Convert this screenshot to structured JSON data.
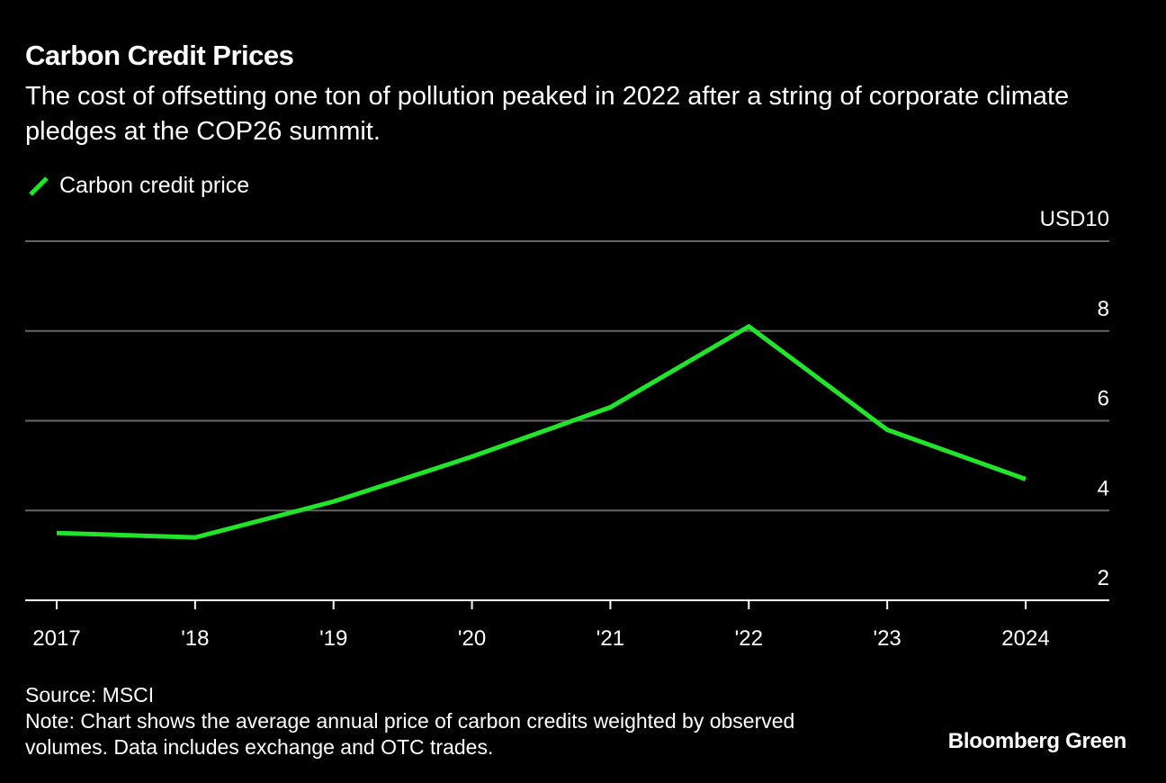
{
  "title": "Carbon Credit Prices",
  "subtitle": "The cost of offsetting one ton of pollution peaked in 2022 after a string of corporate climate pledges at the COP26 summit.",
  "legend": {
    "label": "Carbon credit price",
    "color": "#22e52b"
  },
  "source": "Source: MSCI",
  "note": "Note: Chart shows the average annual price of carbon credits weighted by observed volumes. Data includes exchange and OTC trades.",
  "brand": "Bloomberg Green",
  "chart_data": {
    "type": "line",
    "title": "Carbon Credit Prices",
    "x": [
      2017,
      2018,
      2019,
      2020,
      2021,
      2022,
      2023,
      2024
    ],
    "x_tick_labels": [
      "2017",
      "'18",
      "'19",
      "'20",
      "'21",
      "'22",
      "'23",
      "2024"
    ],
    "series": [
      {
        "name": "Carbon credit price",
        "color": "#22e52b",
        "values": [
          3.5,
          3.4,
          4.2,
          5.2,
          6.3,
          8.1,
          5.8,
          4.7
        ]
      }
    ],
    "ylim": [
      2,
      10
    ],
    "y_ticks": [
      2,
      4,
      6,
      8,
      10
    ],
    "y_tick_labels": [
      "2",
      "4",
      "6",
      "8",
      "USD10"
    ],
    "grid": true,
    "legend_position": "top-left",
    "y_axis_side": "right"
  }
}
